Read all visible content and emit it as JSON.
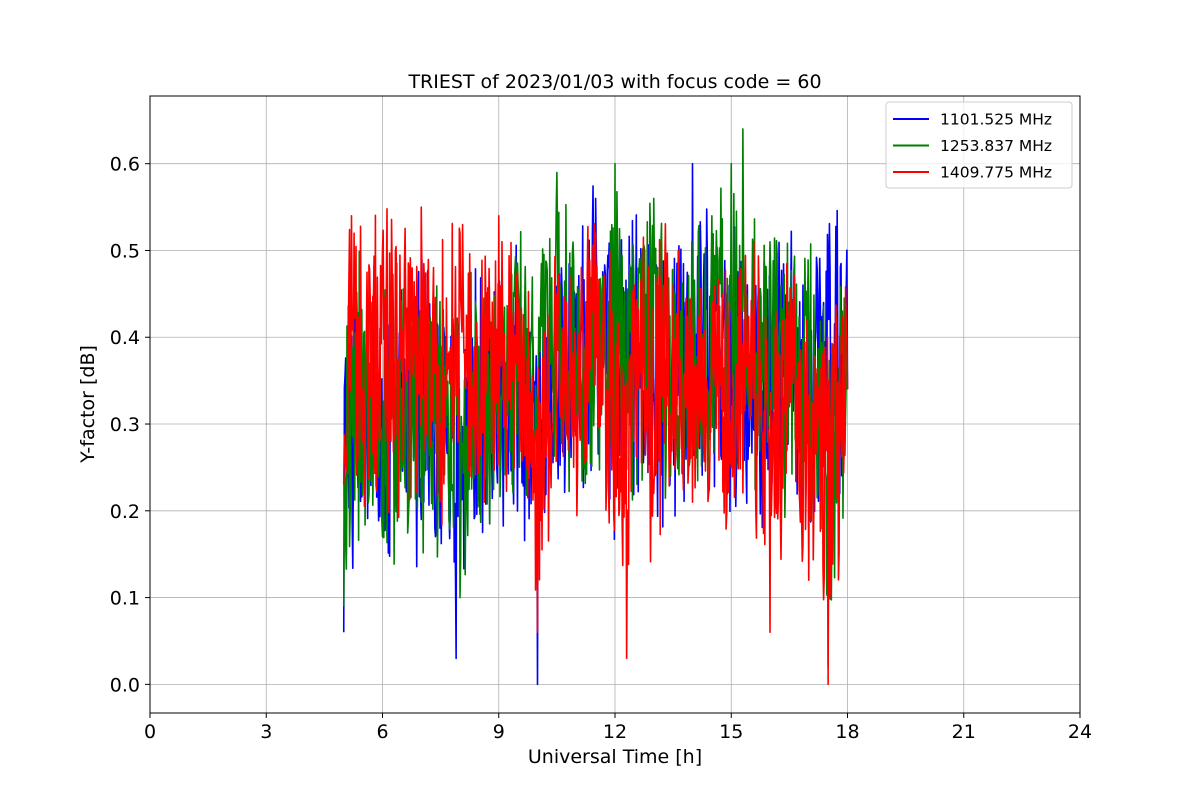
{
  "chart_data": {
    "type": "line",
    "title": "TRIEST of 2023/01/03 with focus code = 60",
    "xlabel": "Universal Time [h]",
    "ylabel": "Y-factor [dB]",
    "xlim": [
      0,
      24
    ],
    "ylim": [
      -0.033,
      0.678
    ],
    "xticks": [
      0,
      3,
      6,
      9,
      12,
      15,
      18,
      21,
      24
    ],
    "xtick_labels": [
      "0",
      "3",
      "6",
      "9",
      "12",
      "15",
      "18",
      "21",
      "24"
    ],
    "yticks": [
      0.0,
      0.1,
      0.2,
      0.3,
      0.4,
      0.5,
      0.6
    ],
    "ytick_labels": [
      "0.0",
      "0.1",
      "0.2",
      "0.3",
      "0.4",
      "0.5",
      "0.6"
    ],
    "grid": true,
    "legend_position": "top-right",
    "series": [
      {
        "name": "1101.525 MHz",
        "color": "#0000ff",
        "x": [
          5.0,
          5.5,
          6.0,
          6.5,
          7.0,
          7.5,
          7.9,
          8.5,
          9.0,
          9.5,
          10.0,
          10.5,
          11.0,
          11.5,
          12.0,
          12.5,
          13.0,
          13.5,
          14.0,
          14.5,
          15.0,
          15.5,
          16.0,
          16.5,
          17.0,
          17.5,
          18.0
        ],
        "values": [
          0.06,
          0.29,
          0.2,
          0.27,
          0.19,
          0.26,
          0.03,
          0.24,
          0.27,
          0.34,
          0.0,
          0.34,
          0.45,
          0.56,
          0.3,
          0.4,
          0.33,
          0.37,
          0.6,
          0.41,
          0.44,
          0.37,
          0.31,
          0.4,
          0.29,
          0.48,
          0.34
        ]
      },
      {
        "name": "1253.837 MHz",
        "color": "#008000",
        "x": [
          5.0,
          5.5,
          6.0,
          6.5,
          7.0,
          7.5,
          8.0,
          8.5,
          9.0,
          9.5,
          10.0,
          10.5,
          11.0,
          11.5,
          12.0,
          12.5,
          13.0,
          13.5,
          14.0,
          14.5,
          15.0,
          15.3,
          15.5,
          16.0,
          16.5,
          17.0,
          17.5,
          18.0
        ],
        "values": [
          0.09,
          0.3,
          0.17,
          0.27,
          0.21,
          0.3,
          0.1,
          0.27,
          0.31,
          0.46,
          0.33,
          0.59,
          0.38,
          0.45,
          0.6,
          0.38,
          0.56,
          0.34,
          0.45,
          0.54,
          0.6,
          0.64,
          0.32,
          0.51,
          0.37,
          0.42,
          0.02,
          0.4
        ]
      },
      {
        "name": "1409.775 MHz",
        "color": "#ff0000",
        "x": [
          5.0,
          5.2,
          5.5,
          6.0,
          6.5,
          7.0,
          7.5,
          8.0,
          8.5,
          9.0,
          9.5,
          10.0,
          10.5,
          11.0,
          11.5,
          12.0,
          12.3,
          12.5,
          13.0,
          13.5,
          14.0,
          14.5,
          15.0,
          15.5,
          16.0,
          16.5,
          17.0,
          17.5,
          18.0
        ],
        "values": [
          0.23,
          0.54,
          0.34,
          0.5,
          0.36,
          0.55,
          0.3,
          0.52,
          0.28,
          0.54,
          0.35,
          0.06,
          0.45,
          0.31,
          0.52,
          0.24,
          0.03,
          0.46,
          0.22,
          0.46,
          0.21,
          0.43,
          0.25,
          0.37,
          0.06,
          0.32,
          0.12,
          0.0,
          0.34
        ]
      }
    ]
  }
}
